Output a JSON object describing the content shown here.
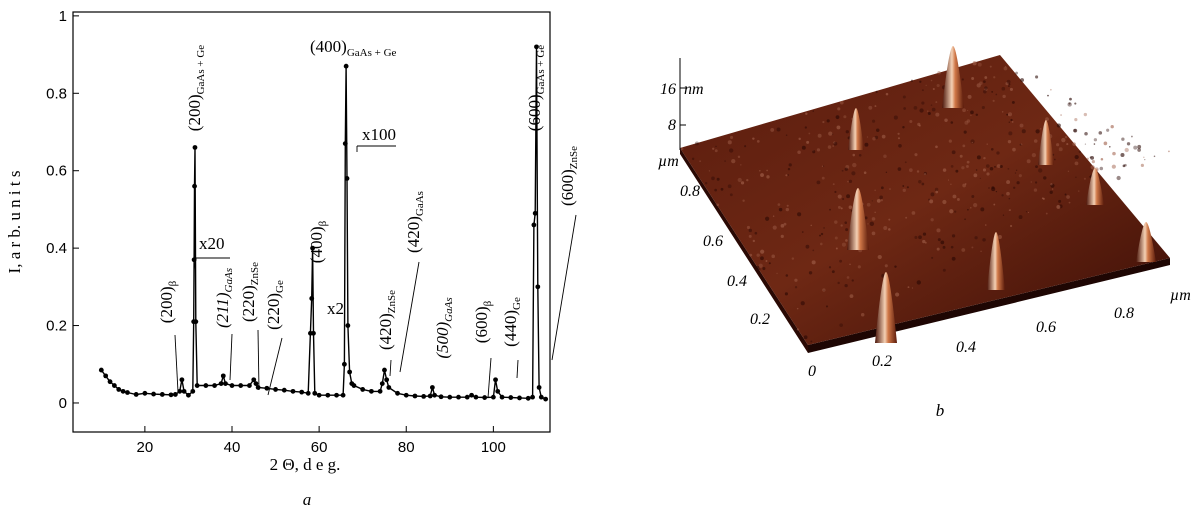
{
  "chart_data": {
    "type": "line",
    "panel_label": "a",
    "x_label": "2 Θ, d e g.",
    "y_label": "I, a r b. u n i t s",
    "xlim": [
      3.5,
      113
    ],
    "xticks": [
      20,
      40,
      60,
      80,
      100
    ],
    "ylim": [
      -0.075,
      1.01
    ],
    "yticks": [
      0,
      0.2,
      0.4,
      0.6,
      0.8,
      1
    ],
    "grid": false,
    "series": [
      {
        "color": "#000000",
        "x": [
          10,
          11,
          12,
          13,
          14,
          15,
          16,
          18,
          20,
          22,
          24,
          26,
          27,
          28,
          28.5,
          29,
          30,
          31,
          31.2,
          31.3,
          31.4,
          31.5,
          31.7,
          32,
          34,
          36,
          37.5,
          38,
          38.5,
          40,
          42,
          44,
          45,
          45.5,
          46,
          48,
          50,
          52,
          54,
          56,
          57.5,
          58,
          58.3,
          58.5,
          58.7,
          59,
          60,
          62,
          64,
          65.5,
          65.8,
          66,
          66.2,
          66.4,
          66.6,
          67,
          67.5,
          68,
          70,
          72,
          74,
          74.5,
          75,
          75.5,
          76,
          78,
          80,
          82,
          84,
          85.5,
          86,
          86.5,
          88,
          90,
          92,
          94,
          95,
          96,
          98,
          100,
          100.5,
          101,
          102,
          104,
          106,
          108,
          109,
          109.3,
          109.6,
          109.9,
          110.2,
          110.5,
          111,
          112
        ],
        "values": [
          0.085,
          0.07,
          0.055,
          0.045,
          0.035,
          0.03,
          0.027,
          0.022,
          0.025,
          0.023,
          0.022,
          0.021,
          0.022,
          0.03,
          0.06,
          0.03,
          0.02,
          0.03,
          0.21,
          0.37,
          0.56,
          0.66,
          0.21,
          0.045,
          0.045,
          0.045,
          0.05,
          0.07,
          0.05,
          0.045,
          0.045,
          0.045,
          0.06,
          0.05,
          0.04,
          0.038,
          0.035,
          0.033,
          0.03,
          0.028,
          0.025,
          0.18,
          0.27,
          0.4,
          0.18,
          0.025,
          0.02,
          0.02,
          0.02,
          0.02,
          0.1,
          0.67,
          0.87,
          0.58,
          0.2,
          0.08,
          0.05,
          0.045,
          0.035,
          0.03,
          0.03,
          0.05,
          0.085,
          0.06,
          0.04,
          0.025,
          0.02,
          0.018,
          0.017,
          0.018,
          0.04,
          0.02,
          0.016,
          0.015,
          0.015,
          0.015,
          0.02,
          0.015,
          0.014,
          0.015,
          0.06,
          0.03,
          0.015,
          0.014,
          0.013,
          0.012,
          0.015,
          0.46,
          0.49,
          0.92,
          0.3,
          0.04,
          0.015,
          0.01
        ]
      }
    ],
    "annotations": [
      {
        "text": "(200)",
        "sub": "β"
      },
      {
        "text": "(200)",
        "sub": "GaAs + Ge"
      },
      {
        "text": "x20"
      },
      {
        "text": "(211)",
        "sub": "GaAs",
        "style": "italic"
      },
      {
        "text": "(220)",
        "sub": "ZnSe"
      },
      {
        "text": "(220)",
        "sub": "Ge"
      },
      {
        "text": "(400)",
        "sub": "β"
      },
      {
        "text": "x2"
      },
      {
        "text": "(400)",
        "sub": "GaAs + Ge"
      },
      {
        "text": "x100"
      },
      {
        "text": "(420)",
        "sub": "ZnSe"
      },
      {
        "text": "(420)",
        "sub": "GaAs"
      },
      {
        "text": "(500)",
        "sub": "GaAs",
        "style": "italic"
      },
      {
        "text": "(600)",
        "sub": "β"
      },
      {
        "text": "(440)",
        "sub": "Ge"
      },
      {
        "text": "(600)",
        "sub": "GaAs + Ge"
      },
      {
        "text": "(600)",
        "sub": "ZnSe"
      }
    ]
  },
  "panel_b": {
    "label": "b",
    "z_unit": "nm",
    "z_ticks": [
      "16",
      "8"
    ],
    "y_unit": "µm",
    "y_ticks": [
      "0.8",
      "0.6",
      "0.4",
      "0.2"
    ],
    "x_unit": "µm",
    "x_ticks": [
      "0",
      "0.2",
      "0.4",
      "0.6",
      "0.8"
    ]
  }
}
